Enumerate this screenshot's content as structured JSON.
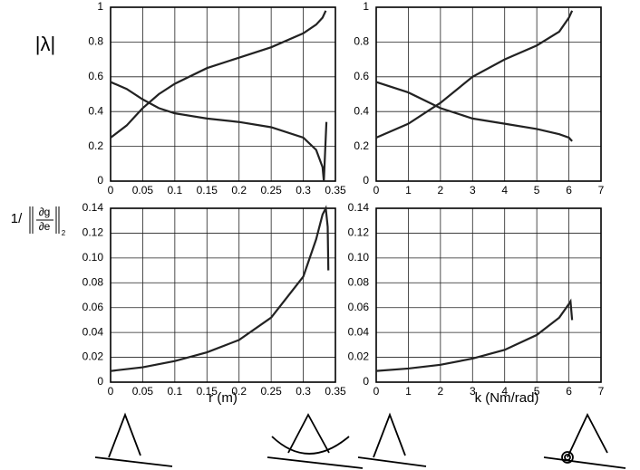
{
  "chart_data": [
    {
      "type": "line",
      "ylabel": "|λ|",
      "xlim": [
        0,
        0.35
      ],
      "xticks": [
        0,
        0.05,
        0.1,
        0.15,
        0.2,
        0.25,
        0.3,
        0.35
      ],
      "ylim": [
        0,
        1
      ],
      "yticks": [
        0,
        0.2,
        0.4,
        0.6,
        0.8,
        1
      ],
      "grid": true,
      "series": [
        {
          "color": "#222222",
          "x": [
            0,
            0.025,
            0.05,
            0.075,
            0.1,
            0.15,
            0.2,
            0.25,
            0.3,
            0.32,
            0.33,
            0.335
          ],
          "values": [
            0.25,
            0.32,
            0.42,
            0.5,
            0.56,
            0.65,
            0.71,
            0.77,
            0.85,
            0.9,
            0.94,
            0.98
          ]
        },
        {
          "color": "#222222",
          "x": [
            0,
            0.025,
            0.05,
            0.075,
            0.1,
            0.15,
            0.2,
            0.25,
            0.3,
            0.32,
            0.33,
            0.332,
            0.336
          ],
          "values": [
            0.57,
            0.53,
            0.47,
            0.42,
            0.39,
            0.36,
            0.34,
            0.31,
            0.25,
            0.18,
            0.08,
            0.0,
            0.34
          ]
        }
      ]
    },
    {
      "type": "line",
      "xlim": [
        0,
        7
      ],
      "xticks": [
        0,
        1,
        2,
        3,
        4,
        5,
        6,
        7
      ],
      "ylim": [
        0,
        1
      ],
      "yticks": [
        0,
        0.2,
        0.4,
        0.6,
        0.8,
        1
      ],
      "grid": true,
      "series": [
        {
          "color": "#222222",
          "x": [
            0,
            1,
            2,
            3,
            4,
            5,
            5.7,
            6,
            6.1
          ],
          "values": [
            0.25,
            0.33,
            0.45,
            0.6,
            0.7,
            0.78,
            0.86,
            0.94,
            0.98
          ]
        },
        {
          "color": "#222222",
          "x": [
            0,
            1,
            2,
            3,
            4,
            5,
            5.7,
            6,
            6.1
          ],
          "values": [
            0.57,
            0.51,
            0.42,
            0.36,
            0.33,
            0.3,
            0.27,
            0.25,
            0.23
          ]
        }
      ]
    },
    {
      "type": "line",
      "ylabel": {
        "prefix": "1/",
        "numerator": "∂g",
        "denominator": "∂e",
        "subscript": "2"
      },
      "xlabel": "r (m)",
      "xlim": [
        0,
        0.35
      ],
      "xticks": [
        0,
        0.05,
        0.1,
        0.15,
        0.2,
        0.25,
        0.3,
        0.35
      ],
      "ylim": [
        0,
        0.14
      ],
      "yticks": [
        0,
        0.02,
        0.04,
        0.06,
        0.08,
        {
          "value": 0.1,
          "label": "0.10"
        },
        0.12,
        0.14
      ],
      "grid": true,
      "series": [
        {
          "color": "#222222",
          "x": [
            0,
            0.05,
            0.1,
            0.15,
            0.2,
            0.25,
            0.3,
            0.32,
            0.33,
            0.335,
            0.338,
            0.339
          ],
          "values": [
            0.009,
            0.012,
            0.017,
            0.024,
            0.034,
            0.052,
            0.085,
            0.115,
            0.135,
            0.14,
            0.125,
            0.09
          ]
        }
      ]
    },
    {
      "type": "line",
      "xlabel": "k (Nm/rad)",
      "xlim": [
        0,
        7
      ],
      "xticks": [
        0,
        1,
        2,
        3,
        4,
        5,
        6,
        7
      ],
      "ylim": [
        0,
        0.14
      ],
      "yticks": [
        0,
        0.02,
        0.04,
        0.06,
        0.08,
        {
          "value": 0.1,
          "label": "0.10"
        },
        0.12,
        0.14
      ],
      "grid": true,
      "series": [
        {
          "color": "#222222",
          "x": [
            0,
            1,
            2,
            3,
            4,
            5,
            5.7,
            6,
            6.05,
            6.1
          ],
          "values": [
            0.009,
            0.011,
            0.014,
            0.019,
            0.026,
            0.038,
            0.052,
            0.063,
            0.065,
            0.05
          ]
        }
      ]
    }
  ]
}
